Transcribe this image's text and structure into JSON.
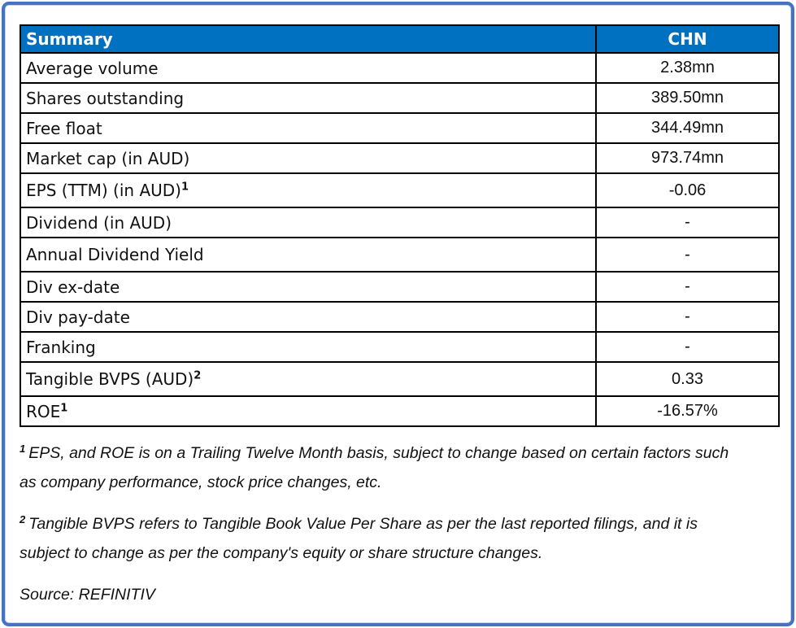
{
  "table": {
    "header": {
      "label": "Summary",
      "value_col": "CHN"
    },
    "rows": [
      {
        "label": "Average volume",
        "sup": "",
        "value": "2.38mn"
      },
      {
        "label": "Shares outstanding",
        "sup": "",
        "value": "389.50mn"
      },
      {
        "label": "Free float",
        "sup": "",
        "value": "344.49mn"
      },
      {
        "label": "Market cap (in AUD)",
        "sup": "",
        "value": "973.74mn"
      },
      {
        "label": "EPS (TTM) (in AUD)",
        "sup": "1",
        "value": "-0.06"
      },
      {
        "label": "Dividend (in AUD)",
        "sup": "",
        "value": "-"
      },
      {
        "label": "Annual Dividend Yield",
        "sup": "",
        "value": "-"
      },
      {
        "label": "Div ex-date",
        "sup": "",
        "value": "-"
      },
      {
        "label": "Div pay-date",
        "sup": "",
        "value": "-"
      },
      {
        "label": "Franking",
        "sup": "",
        "value": "-"
      },
      {
        "label": "Tangible BVPS (AUD)",
        "sup": "2",
        "value": "0.33"
      },
      {
        "label": "ROE",
        "sup": "1",
        "value": "-16.57%"
      }
    ]
  },
  "footnotes": [
    {
      "sup": "1",
      "text": "EPS, and ROE is on a Trailing Twelve Month basis, subject to change based on certain factors such as company performance, stock price changes, etc."
    },
    {
      "sup": "2",
      "text": "Tangible BVPS refers to Tangible Book Value Per Share as per the last reported filings, and it is subject to change as per the company's equity or share structure changes."
    }
  ],
  "source": "Source: REFINITIV",
  "colors": {
    "header_bg": "#0070C0",
    "header_text": "#FFFFFF",
    "frame_border": "#4472C4",
    "grid": "#000000"
  }
}
